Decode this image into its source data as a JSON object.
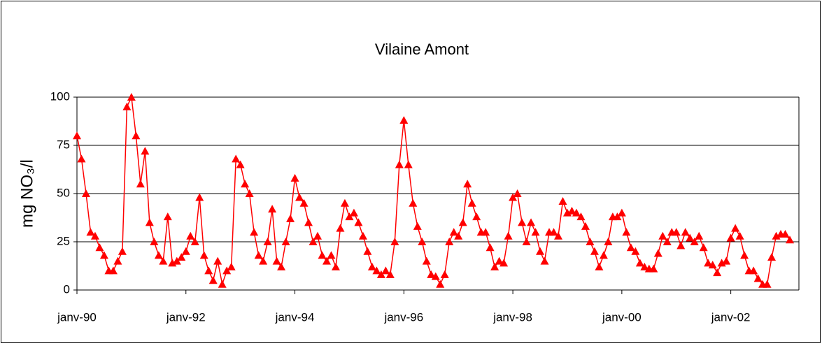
{
  "chart_data": {
    "type": "line",
    "title": "Vilaine Amont",
    "y_label": "mg NO₃/l",
    "x": [
      "1990-01",
      "1990-02",
      "1990-03",
      "1990-04",
      "1990-05",
      "1990-06",
      "1990-07",
      "1990-08",
      "1990-09",
      "1990-10",
      "1990-11",
      "1990-12",
      "1991-01",
      "1991-02",
      "1991-03",
      "1991-04",
      "1991-05",
      "1991-06",
      "1991-07",
      "1991-08",
      "1991-09",
      "1991-10",
      "1991-11",
      "1991-12",
      "1992-01",
      "1992-02",
      "1992-03",
      "1992-04",
      "1992-05",
      "1992-06",
      "1992-07",
      "1992-08",
      "1992-09",
      "1992-10",
      "1992-11",
      "1992-12",
      "1993-01",
      "1993-02",
      "1993-03",
      "1993-04",
      "1993-05",
      "1993-06",
      "1993-07",
      "1993-08",
      "1993-09",
      "1993-10",
      "1993-11",
      "1993-12",
      "1994-01",
      "1994-02",
      "1994-03",
      "1994-04",
      "1994-05",
      "1994-06",
      "1994-07",
      "1994-08",
      "1994-09",
      "1994-10",
      "1994-11",
      "1994-12",
      "1995-01",
      "1995-02",
      "1995-03",
      "1995-04",
      "1995-05",
      "1995-06",
      "1995-07",
      "1995-08",
      "1995-09",
      "1995-10",
      "1995-11",
      "1995-12",
      "1996-01",
      "1996-02",
      "1996-03",
      "1996-04",
      "1996-05",
      "1996-06",
      "1996-07",
      "1996-08",
      "1996-09",
      "1996-10",
      "1996-11",
      "1996-12",
      "1997-01",
      "1997-02",
      "1997-03",
      "1997-04",
      "1997-05",
      "1997-06",
      "1997-07",
      "1997-08",
      "1997-09",
      "1997-10",
      "1997-11",
      "1997-12",
      "1998-01",
      "1998-02",
      "1998-03",
      "1998-04",
      "1998-05",
      "1998-06",
      "1998-07",
      "1998-08",
      "1998-09",
      "1998-10",
      "1998-11",
      "1998-12",
      "1999-01",
      "1999-02",
      "1999-03",
      "1999-04",
      "1999-05",
      "1999-06",
      "1999-07",
      "1999-08",
      "1999-09",
      "1999-10",
      "1999-11",
      "1999-12",
      "2000-01",
      "2000-02",
      "2000-03",
      "2000-04",
      "2000-05",
      "2000-06",
      "2000-07",
      "2000-08",
      "2000-09",
      "2000-10",
      "2000-11",
      "2000-12",
      "2001-01",
      "2001-02",
      "2001-03",
      "2001-04",
      "2001-05",
      "2001-06",
      "2001-07",
      "2001-08",
      "2001-09",
      "2001-10",
      "2001-11",
      "2001-12",
      "2002-01",
      "2002-02",
      "2002-03",
      "2002-04",
      "2002-05",
      "2002-06",
      "2002-07",
      "2002-08",
      "2002-09",
      "2002-10",
      "2002-11",
      "2002-12",
      "2003-01",
      "2003-02"
    ],
    "series": [
      {
        "name": "Vilaine Amont",
        "color": "#ff0000",
        "values": [
          80,
          68,
          50,
          30,
          28,
          22,
          18,
          10,
          10,
          15,
          20,
          95,
          100,
          80,
          55,
          72,
          35,
          25,
          18,
          15,
          38,
          14,
          15,
          17,
          20,
          28,
          25,
          48,
          18,
          10,
          5,
          15,
          3,
          10,
          12,
          68,
          65,
          55,
          50,
          30,
          18,
          15,
          25,
          42,
          15,
          12,
          25,
          37,
          58,
          48,
          45,
          35,
          25,
          28,
          18,
          15,
          18,
          12,
          32,
          45,
          38,
          40,
          35,
          28,
          20,
          12,
          10,
          8,
          10,
          8,
          25,
          65,
          88,
          65,
          45,
          33,
          25,
          15,
          8,
          7,
          3,
          8,
          25,
          30,
          28,
          35,
          55,
          45,
          38,
          30,
          30,
          22,
          12,
          15,
          14,
          28,
          48,
          50,
          35,
          25,
          35,
          30,
          20,
          15,
          30,
          30,
          28,
          46,
          40,
          41,
          40,
          38,
          33,
          25,
          20,
          12,
          18,
          25,
          38,
          38,
          40,
          30,
          22,
          20,
          14,
          12,
          11,
          11,
          19,
          28,
          25,
          30,
          30,
          23,
          30,
          27,
          25,
          28,
          22,
          14,
          13,
          9,
          14,
          15,
          27,
          32,
          28,
          18,
          10,
          10,
          6,
          3,
          3,
          17,
          28,
          29,
          29,
          26
        ]
      }
    ],
    "xlim": [
      "1990-01",
      "2003-04"
    ],
    "xticks": [
      {
        "value": "1990-01",
        "label": "janv-90"
      },
      {
        "value": "1992-01",
        "label": "janv-92"
      },
      {
        "value": "1994-01",
        "label": "janv-94"
      },
      {
        "value": "1996-01",
        "label": "janv-96"
      },
      {
        "value": "1998-01",
        "label": "janv-98"
      },
      {
        "value": "2000-01",
        "label": "janv-00"
      },
      {
        "value": "2002-01",
        "label": "janv-02"
      }
    ],
    "ylim": [
      0,
      100
    ],
    "yticks": [
      0,
      25,
      50,
      75,
      100
    ],
    "grid": true
  }
}
